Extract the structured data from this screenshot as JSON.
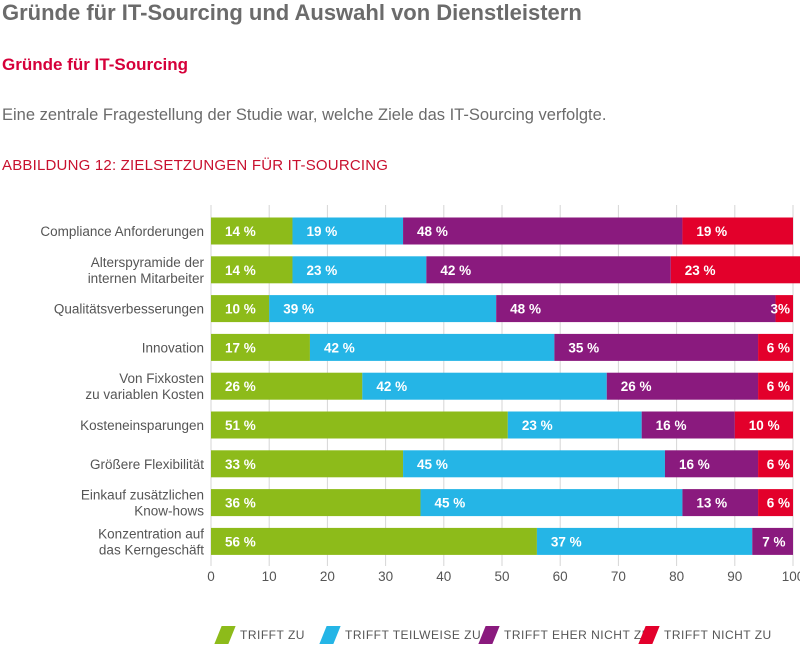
{
  "header": {
    "title": "Gründe für IT-Sourcing und Auswahl von Dienstleistern",
    "subtitle": "Gründe für IT-Sourcing",
    "intro": "Eine zentrale Fragestellung der Studie war, welche Ziele das IT-Sourcing verfolgte.",
    "figure_label": "ABBILDUNG 12: ZIELSETZUNGEN FÜR IT-SOURCING"
  },
  "colors": {
    "trifft_zu": "#8dbb1a",
    "teilweise": "#25b5e6",
    "eher_nicht": "#8a1a7e",
    "nicht": "#e3002b"
  },
  "legend": [
    {
      "label": "TRIFFT ZU",
      "color": "#8dbb1a"
    },
    {
      "label": "TRIFFT TEILWEISE ZU",
      "color": "#25b5e6"
    },
    {
      "label": "TRIFFT EHER NICHT ZU",
      "color": "#8a1a7e"
    },
    {
      "label": "TRIFFT NICHT ZU",
      "color": "#e3002b"
    }
  ],
  "chart_data": {
    "type": "bar",
    "orientation": "horizontal",
    "stacked": true,
    "xlim": [
      0,
      100
    ],
    "xticks": [
      0,
      10,
      20,
      30,
      40,
      50,
      60,
      70,
      80,
      90,
      100
    ],
    "grid": true,
    "legend_position": "bottom",
    "categories": [
      [
        "Compliance Anforderungen"
      ],
      [
        "Alterspyramide der",
        "internen Mitarbeiter"
      ],
      [
        "Qualitätsverbesserungen"
      ],
      [
        "Innovation"
      ],
      [
        "Von Fixkosten",
        "zu variablen Kosten"
      ],
      [
        "Kosteneinsparungen"
      ],
      [
        "Größere Flexibilität"
      ],
      [
        "Einkauf zusätzlichen",
        "Know-hows"
      ],
      [
        "Konzentration auf",
        "das Kerngeschäft"
      ]
    ],
    "series": [
      {
        "name": "TRIFFT ZU",
        "color": "#8dbb1a",
        "values": [
          14,
          14,
          10,
          17,
          26,
          51,
          33,
          36,
          56
        ]
      },
      {
        "name": "TRIFFT TEILWEISE ZU",
        "color": "#25b5e6",
        "values": [
          19,
          23,
          39,
          42,
          42,
          23,
          45,
          45,
          37
        ]
      },
      {
        "name": "TRIFFT EHER NICHT ZU",
        "color": "#8a1a7e",
        "values": [
          48,
          42,
          48,
          35,
          26,
          16,
          16,
          13,
          7
        ]
      },
      {
        "name": "TRIFFT NICHT ZU",
        "color": "#e3002b",
        "values": [
          19,
          23,
          3,
          6,
          6,
          10,
          6,
          6,
          0
        ]
      }
    ],
    "data_labels": [
      [
        "14 %",
        "19 %",
        "48 %",
        "19 %"
      ],
      [
        "14 %",
        "23 %",
        "42 %",
        "23 %"
      ],
      [
        "10 %",
        "39 %",
        "48 %",
        "3%"
      ],
      [
        "17 %",
        "42 %",
        "35 %",
        "6 %"
      ],
      [
        "26 %",
        "42 %",
        "26 %",
        "6 %"
      ],
      [
        "51 %",
        "23 %",
        "16 %",
        "10 %"
      ],
      [
        "33 %",
        "45 %",
        "16 %",
        "6 %"
      ],
      [
        "36 %",
        "45 %",
        "13 %",
        "6 %"
      ],
      [
        "56 %",
        "37 %",
        "7 %",
        ""
      ]
    ]
  }
}
